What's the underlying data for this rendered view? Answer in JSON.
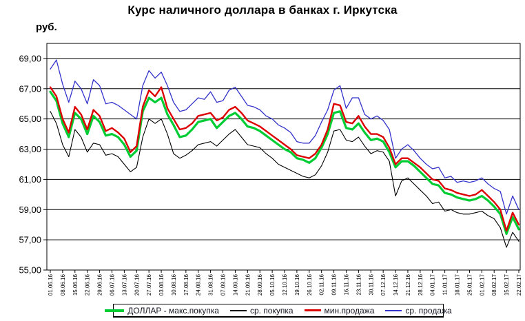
{
  "chart_data": {
    "type": "line",
    "title": "Курс наличного доллара в банках г. Иркутска",
    "ylabel": "руб.",
    "xlabel": "",
    "grid": true,
    "legend_position": "bottom",
    "ylim": [
      55,
      70
    ],
    "ytick_step": 2,
    "ytick_labels": [
      "55,00",
      "57,00",
      "59,00",
      "61,00",
      "63,00",
      "65,00",
      "67,00",
      "69,00"
    ],
    "x_tick_labels": [
      "01.06.16",
      "08.06.16",
      "15.06.16",
      "22.06.16",
      "29.06.16",
      "06.07.16",
      "13.07.16",
      "20.07.16",
      "27.07.16",
      "03.08.16",
      "10.08.16",
      "17.08.16",
      "24.08.16",
      "31.08.16",
      "07.09.16",
      "14.09.16",
      "21.09.16",
      "28.09.16",
      "05.10.16",
      "12.10.16",
      "19.10.16",
      "26.10.16",
      "02.11.16",
      "09.11.16",
      "16.11.16",
      "23.11.16",
      "30.11.16",
      "07.12.16",
      "14.12.16",
      "21.12.16",
      "28.12.16",
      "04.01.17",
      "11.01.17",
      "18.01.17",
      "25.01.17",
      "01.02.17",
      "08.02.17",
      "15.02.17",
      "22.02.17"
    ],
    "sampling_note": "daily quotes approximated at half-week resolution; 2 points per x tick interval",
    "series": [
      {
        "name": "ДОЛЛАР - макс.покупка",
        "color": "#00CC33",
        "line_width": 3.2,
        "values": [
          66.8,
          66.2,
          64.7,
          63.8,
          65.4,
          65.0,
          64.0,
          65.2,
          64.8,
          63.9,
          64.0,
          63.8,
          63.3,
          62.5,
          62.9,
          65.5,
          66.4,
          66.1,
          66.4,
          65.3,
          64.6,
          63.8,
          63.9,
          64.3,
          64.8,
          64.9,
          65.0,
          64.4,
          64.8,
          65.2,
          65.4,
          65.0,
          64.5,
          64.4,
          64.2,
          63.9,
          63.6,
          63.3,
          63.0,
          62.8,
          62.4,
          62.3,
          62.1,
          62.4,
          63.1,
          64.0,
          65.4,
          65.5,
          64.4,
          64.3,
          64.7,
          64.1,
          63.6,
          63.7,
          63.5,
          62.8,
          61.8,
          62.2,
          62.2,
          61.9,
          61.5,
          61.1,
          60.7,
          60.6,
          60.1,
          60.0,
          59.8,
          59.7,
          59.6,
          59.7,
          59.9,
          59.6,
          59.2,
          58.7,
          57.4,
          58.5,
          57.7
        ]
      },
      {
        "name": "ср. покупка",
        "color": "#000000",
        "line_width": 1.1,
        "values": [
          65.5,
          64.7,
          63.3,
          62.5,
          64.3,
          63.8,
          62.8,
          63.4,
          63.3,
          62.6,
          62.7,
          62.5,
          62.0,
          61.5,
          61.8,
          63.8,
          65.0,
          64.7,
          65.0,
          64.0,
          62.7,
          62.4,
          62.6,
          62.9,
          63.3,
          63.4,
          63.5,
          63.2,
          63.6,
          64.0,
          64.3,
          63.8,
          63.3,
          63.2,
          63.1,
          62.7,
          62.4,
          62.0,
          61.8,
          61.6,
          61.4,
          61.2,
          61.1,
          61.3,
          61.9,
          62.8,
          64.2,
          64.3,
          63.6,
          63.5,
          63.8,
          63.2,
          62.7,
          62.9,
          62.8,
          62.2,
          59.9,
          60.9,
          61.1,
          60.7,
          60.3,
          59.9,
          59.4,
          59.5,
          58.9,
          59.0,
          58.8,
          58.7,
          58.7,
          58.8,
          58.9,
          58.6,
          58.4,
          57.8,
          56.5,
          57.5,
          56.9
        ]
      },
      {
        "name": "мин.продажа",
        "color": "#DD0000",
        "line_width": 2.4,
        "values": [
          67.1,
          66.5,
          65.0,
          64.1,
          65.8,
          65.3,
          64.3,
          65.6,
          65.2,
          64.2,
          64.4,
          64.1,
          63.7,
          62.8,
          63.2,
          65.8,
          66.9,
          66.5,
          67.1,
          65.7,
          65.0,
          64.3,
          64.4,
          64.7,
          65.2,
          65.3,
          65.4,
          64.9,
          65.1,
          65.6,
          65.8,
          65.4,
          64.9,
          64.7,
          64.5,
          64.2,
          63.9,
          63.6,
          63.3,
          63.0,
          62.6,
          62.5,
          62.4,
          62.7,
          63.3,
          64.3,
          66.0,
          65.9,
          64.8,
          64.7,
          65.2,
          64.5,
          64.0,
          64.0,
          63.8,
          63.1,
          62.0,
          62.4,
          62.4,
          62.1,
          61.8,
          61.4,
          61.0,
          60.9,
          60.4,
          60.3,
          60.1,
          60.0,
          59.9,
          60.0,
          60.3,
          59.9,
          59.5,
          59.0,
          57.6,
          58.8,
          58.0
        ]
      },
      {
        "name": "ср. продажа",
        "color": "#3333CC",
        "line_width": 1.3,
        "values": [
          68.3,
          68.9,
          67.3,
          66.1,
          67.5,
          67.0,
          66.0,
          67.6,
          67.2,
          66.0,
          66.1,
          65.9,
          65.6,
          65.3,
          65.0,
          67.2,
          68.2,
          67.7,
          68.1,
          67.2,
          66.1,
          65.5,
          65.6,
          66.0,
          66.4,
          66.3,
          66.8,
          66.1,
          66.2,
          66.9,
          67.1,
          66.5,
          65.9,
          65.8,
          65.6,
          65.2,
          65.0,
          64.6,
          64.4,
          64.1,
          63.5,
          63.4,
          63.4,
          63.9,
          64.8,
          65.6,
          66.9,
          67.2,
          65.7,
          66.4,
          66.4,
          65.3,
          65.0,
          65.2,
          64.9,
          64.3,
          62.4,
          63.0,
          63.3,
          62.9,
          62.4,
          62.0,
          61.7,
          61.8,
          61.1,
          61.2,
          60.8,
          60.9,
          60.8,
          60.9,
          61.1,
          60.7,
          60.4,
          60.2,
          58.7,
          59.9,
          59.0
        ]
      }
    ]
  }
}
